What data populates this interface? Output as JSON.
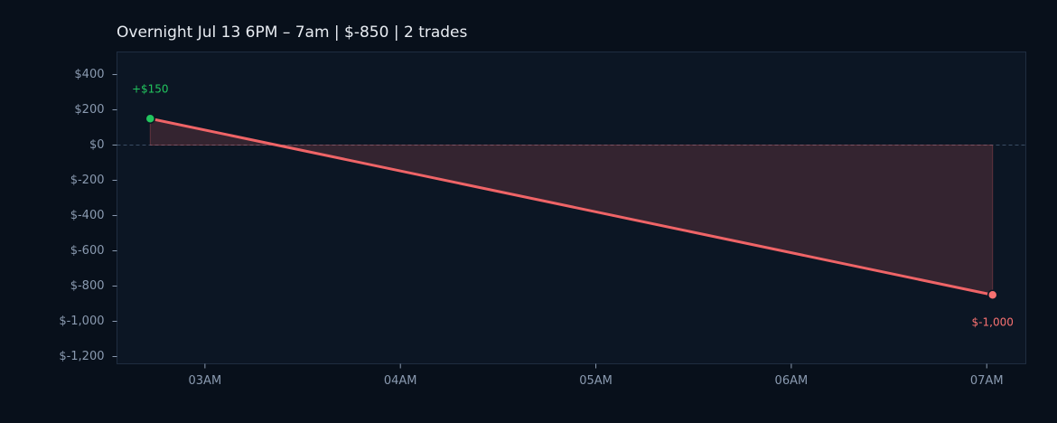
{
  "chart_data": {
    "type": "line",
    "title": "Overnight  Jul 13 6PM – 7am  |  $-850  |  2 trades",
    "x": [
      2.72,
      7.03
    ],
    "series": [
      {
        "color": "#ef6467",
        "values": [
          150,
          -850
        ],
        "marker_colors": [
          "#22c55e",
          "#f87171"
        ]
      }
    ],
    "annotations": [
      {
        "text": "+$150",
        "color": "#22c55e"
      },
      {
        "text": "$-1,000",
        "color": "#f87171"
      }
    ],
    "xlim": [
      2.55,
      7.2
    ],
    "xticks": [
      {
        "value": 3,
        "label": "03AM"
      },
      {
        "value": 4,
        "label": "04AM"
      },
      {
        "value": 5,
        "label": "05AM"
      },
      {
        "value": 6,
        "label": "06AM"
      },
      {
        "value": 7,
        "label": "07AM"
      }
    ],
    "ylim": [
      -1241,
      528
    ],
    "yticks": [
      {
        "value": 400,
        "label": "$400"
      },
      {
        "value": 200,
        "label": "$200"
      },
      {
        "value": 0,
        "label": "$0"
      },
      {
        "value": -200,
        "label": "$-200"
      },
      {
        "value": -400,
        "label": "$-400"
      },
      {
        "value": -600,
        "label": "$-600"
      },
      {
        "value": -800,
        "label": "$-800"
      },
      {
        "value": -1000,
        "label": "$-1,000"
      },
      {
        "value": -1200,
        "label": "$-1,200"
      }
    ],
    "zero_line": true
  }
}
